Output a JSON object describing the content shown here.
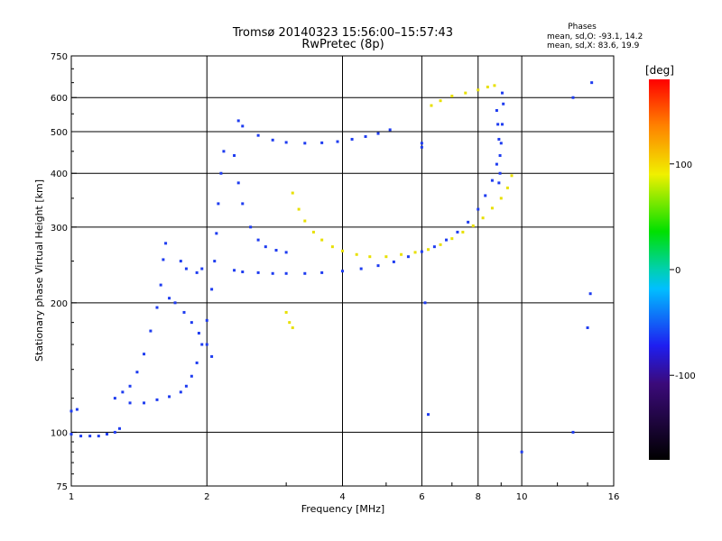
{
  "chart_data": {
    "type": "scatter",
    "title": "Tromsø 20140323 15:56:00–15:57:43",
    "subtitle": "RwPretec (8p)",
    "xlabel": "Frequency [MHz]",
    "ylabel": "Stationary phase Virtual Height [km]",
    "x_scale": "log",
    "y_scale": "log",
    "xlim": [
      1,
      16
    ],
    "ylim": [
      75,
      750
    ],
    "grid": true,
    "x_ticks": [
      {
        "value": 1,
        "label": "1"
      },
      {
        "value": 2,
        "label": "2"
      },
      {
        "value": 4,
        "label": "4"
      },
      {
        "value": 6,
        "label": "6"
      },
      {
        "value": 8,
        "label": "8"
      },
      {
        "value": 10,
        "label": "10"
      },
      {
        "value": 16,
        "label": "16"
      }
    ],
    "y_ticks": [
      {
        "value": 75,
        "label": "75"
      },
      {
        "value": 100,
        "label": "100"
      },
      {
        "value": 200,
        "label": "200"
      },
      {
        "value": 300,
        "label": "300"
      },
      {
        "value": 400,
        "label": "400"
      },
      {
        "value": 500,
        "label": "500"
      },
      {
        "value": 600,
        "label": "600"
      },
      {
        "value": 750,
        "label": "750"
      }
    ],
    "legend": {
      "title": "Phases",
      "line1": "mean, sd,O: -93.1, 14.2",
      "line2": "mean, sd,X:  83.6, 19.9"
    },
    "colorbar": {
      "label": "[deg]",
      "range": [
        -180,
        180
      ],
      "ticks": [
        {
          "value": 100,
          "label": "100"
        },
        {
          "value": 0,
          "label": "0"
        },
        {
          "value": -100,
          "label": "-100"
        }
      ]
    },
    "series": [
      {
        "mode": "O",
        "phase": -95,
        "color": "#1e3cf0",
        "points": [
          [
            1.0,
            99
          ],
          [
            1.05,
            98
          ],
          [
            1.1,
            98
          ],
          [
            1.15,
            98
          ],
          [
            1.2,
            99
          ],
          [
            1.25,
            100
          ],
          [
            1.28,
            102
          ],
          [
            1.0,
            112
          ],
          [
            1.03,
            113
          ],
          [
            1.25,
            120
          ],
          [
            1.3,
            124
          ],
          [
            1.35,
            128
          ],
          [
            1.4,
            138
          ],
          [
            1.45,
            152
          ],
          [
            1.5,
            172
          ],
          [
            1.55,
            195
          ],
          [
            1.58,
            220
          ],
          [
            1.6,
            252
          ],
          [
            1.62,
            275
          ],
          [
            1.35,
            117
          ],
          [
            1.45,
            117
          ],
          [
            1.55,
            119
          ],
          [
            1.65,
            121
          ],
          [
            1.75,
            124
          ],
          [
            1.8,
            128
          ],
          [
            1.85,
            135
          ],
          [
            1.9,
            145
          ],
          [
            1.95,
            160
          ],
          [
            2.0,
            182
          ],
          [
            2.05,
            215
          ],
          [
            2.08,
            250
          ],
          [
            2.1,
            290
          ],
          [
            2.12,
            340
          ],
          [
            2.15,
            400
          ],
          [
            2.18,
            450
          ],
          [
            1.65,
            205
          ],
          [
            1.7,
            200
          ],
          [
            1.78,
            190
          ],
          [
            1.85,
            180
          ],
          [
            1.92,
            170
          ],
          [
            2.0,
            160
          ],
          [
            2.05,
            150
          ],
          [
            1.75,
            250
          ],
          [
            1.8,
            240
          ],
          [
            1.9,
            235
          ],
          [
            1.95,
            240
          ],
          [
            2.3,
            440
          ],
          [
            2.35,
            380
          ],
          [
            2.4,
            340
          ],
          [
            2.5,
            300
          ],
          [
            2.6,
            280
          ],
          [
            2.7,
            270
          ],
          [
            2.85,
            265
          ],
          [
            3.0,
            262
          ],
          [
            2.3,
            238
          ],
          [
            2.4,
            236
          ],
          [
            2.6,
            235
          ],
          [
            2.8,
            234
          ],
          [
            3.0,
            234
          ],
          [
            3.3,
            234
          ],
          [
            3.6,
            235
          ],
          [
            4.0,
            237
          ],
          [
            4.4,
            240
          ],
          [
            4.8,
            244
          ],
          [
            5.2,
            249
          ],
          [
            5.6,
            256
          ],
          [
            6.0,
            263
          ],
          [
            6.4,
            270
          ],
          [
            6.8,
            280
          ],
          [
            7.2,
            292
          ],
          [
            7.6,
            308
          ],
          [
            8.0,
            330
          ],
          [
            8.3,
            355
          ],
          [
            8.6,
            385
          ],
          [
            8.8,
            420
          ],
          [
            9.0,
            470
          ],
          [
            9.05,
            520
          ],
          [
            9.1,
            580
          ],
          [
            9.05,
            615
          ],
          [
            2.35,
            530
          ],
          [
            2.4,
            515
          ],
          [
            2.6,
            490
          ],
          [
            2.8,
            478
          ],
          [
            3.0,
            472
          ],
          [
            3.3,
            470
          ],
          [
            3.6,
            471
          ],
          [
            3.9,
            474
          ],
          [
            4.2,
            480
          ],
          [
            4.5,
            487
          ],
          [
            4.8,
            495
          ],
          [
            5.1,
            505
          ],
          [
            8.8,
            560
          ],
          [
            8.85,
            520
          ],
          [
            8.9,
            480
          ],
          [
            8.95,
            440
          ],
          [
            8.95,
            400
          ],
          [
            8.9,
            380
          ],
          [
            6.0,
            470
          ],
          [
            6.1,
            200
          ],
          [
            6.2,
            110
          ],
          [
            10.0,
            90
          ],
          [
            13.0,
            100
          ],
          [
            14.0,
            175
          ],
          [
            14.2,
            210
          ],
          [
            14.3,
            650
          ],
          [
            13.0,
            600
          ],
          [
            6.0,
            460
          ]
        ]
      },
      {
        "mode": "X",
        "phase": 85,
        "color": "#e8e000",
        "points": [
          [
            3.1,
            360
          ],
          [
            3.2,
            330
          ],
          [
            3.3,
            310
          ],
          [
            3.45,
            292
          ],
          [
            3.6,
            280
          ],
          [
            3.8,
            270
          ],
          [
            4.0,
            264
          ],
          [
            4.3,
            259
          ],
          [
            4.6,
            256
          ],
          [
            5.0,
            256
          ],
          [
            5.4,
            259
          ],
          [
            5.8,
            262
          ],
          [
            6.2,
            266
          ],
          [
            6.6,
            273
          ],
          [
            7.0,
            282
          ],
          [
            7.4,
            292
          ],
          [
            7.8,
            302
          ],
          [
            8.2,
            315
          ],
          [
            8.6,
            332
          ],
          [
            9.0,
            350
          ],
          [
            9.3,
            370
          ],
          [
            9.5,
            395
          ],
          [
            3.05,
            180
          ],
          [
            3.1,
            175
          ],
          [
            3.0,
            190
          ],
          [
            6.3,
            575
          ],
          [
            6.6,
            590
          ],
          [
            7.0,
            605
          ],
          [
            7.5,
            615
          ],
          [
            8.0,
            625
          ],
          [
            8.4,
            635
          ],
          [
            8.7,
            640
          ]
        ]
      }
    ]
  }
}
